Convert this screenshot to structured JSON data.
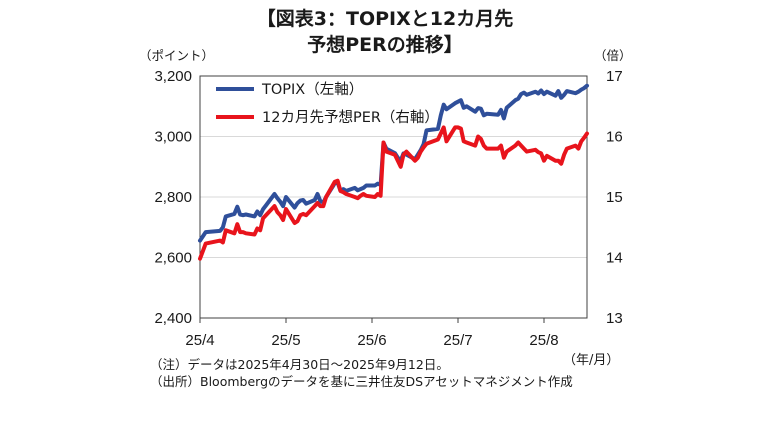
{
  "title": {
    "line1": "【図表3：TOPIXと12カ月先",
    "line2": "予想PERの推移】"
  },
  "left_axis_unit": "（ポイント）",
  "right_axis_unit": "（倍）",
  "x_axis_unit": "（年/月）",
  "notes": {
    "note": "（注）データは2025年4月30日～2025年9月12日。",
    "source": "（出所）Bloombergのデータを基に三井住友DSアセットマネジメント作成"
  },
  "colors": {
    "topix": "#2f4f9a",
    "per": "#e8141c",
    "frame": "#404040"
  },
  "chart_data": {
    "type": "line",
    "x_ticks": [
      "25/4",
      "25/5",
      "25/6",
      "25/7",
      "25/8"
    ],
    "x_range": [
      "2025-04-30",
      "2025-09-12"
    ],
    "y_left": {
      "ticks": [
        "2,400",
        "2,600",
        "2,800",
        "3,000",
        "3,200"
      ],
      "lim": [
        2400,
        3200
      ]
    },
    "y_right": {
      "ticks": [
        "13",
        "14",
        "15",
        "16",
        "17"
      ],
      "lim": [
        13,
        17
      ]
    },
    "legend_position": "top-left",
    "series": [
      {
        "name": "TOPIX（左軸）",
        "axis": "left",
        "color": "#2f4f9a",
        "points": [
          [
            "2025-04-30",
            2656
          ],
          [
            "2025-05-02",
            2684
          ],
          [
            "2025-05-07",
            2688
          ],
          [
            "2025-05-08",
            2700
          ],
          [
            "2025-05-09",
            2736
          ],
          [
            "2025-05-12",
            2744
          ],
          [
            "2025-05-13",
            2768
          ],
          [
            "2025-05-14",
            2742
          ],
          [
            "2025-05-15",
            2740
          ],
          [
            "2025-05-16",
            2742
          ],
          [
            "2025-05-19",
            2736
          ],
          [
            "2025-05-20",
            2752
          ],
          [
            "2025-05-21",
            2740
          ],
          [
            "2025-05-22",
            2760
          ],
          [
            "2025-05-23",
            2772
          ],
          [
            "2025-05-26",
            2810
          ],
          [
            "2025-05-27",
            2796
          ],
          [
            "2025-05-28",
            2784
          ],
          [
            "2025-05-29",
            2770
          ],
          [
            "2025-05-30",
            2800
          ],
          [
            "2025-06-02",
            2765
          ],
          [
            "2025-06-03",
            2780
          ],
          [
            "2025-06-04",
            2788
          ],
          [
            "2025-06-05",
            2790
          ],
          [
            "2025-06-06",
            2778
          ],
          [
            "2025-06-09",
            2790
          ],
          [
            "2025-06-10",
            2810
          ],
          [
            "2025-06-11",
            2786
          ],
          [
            "2025-06-12",
            2782
          ],
          [
            "2025-06-13",
            2800
          ],
          [
            "2025-06-16",
            2845
          ],
          [
            "2025-06-17",
            2848
          ],
          [
            "2025-06-18",
            2820
          ],
          [
            "2025-06-19",
            2826
          ],
          [
            "2025-06-20",
            2820
          ],
          [
            "2025-06-23",
            2830
          ],
          [
            "2025-06-24",
            2822
          ],
          [
            "2025-06-25",
            2826
          ],
          [
            "2025-06-26",
            2830
          ],
          [
            "2025-06-27",
            2838
          ],
          [
            "2025-06-30",
            2838
          ],
          [
            "2025-07-01",
            2844
          ],
          [
            "2025-07-02",
            2840
          ],
          [
            "2025-07-03",
            2980
          ],
          [
            "2025-07-04",
            2960
          ],
          [
            "2025-07-07",
            2945
          ],
          [
            "2025-07-08",
            2930
          ],
          [
            "2025-07-09",
            2920
          ],
          [
            "2025-07-10",
            2944
          ],
          [
            "2025-07-11",
            2940
          ],
          [
            "2025-07-14",
            2925
          ],
          [
            "2025-07-15",
            2940
          ],
          [
            "2025-07-16",
            2955
          ],
          [
            "2025-07-17",
            2975
          ],
          [
            "2025-07-18",
            3020
          ],
          [
            "2025-07-22",
            3025
          ],
          [
            "2025-07-23",
            3070
          ],
          [
            "2025-07-24",
            3105
          ],
          [
            "2025-07-25",
            3090
          ],
          [
            "2025-07-28",
            3110
          ],
          [
            "2025-07-29",
            3115
          ],
          [
            "2025-07-30",
            3120
          ],
          [
            "2025-07-31",
            3095
          ],
          [
            "2025-08-01",
            3100
          ],
          [
            "2025-08-04",
            3082
          ],
          [
            "2025-08-05",
            3094
          ],
          [
            "2025-08-06",
            3092
          ],
          [
            "2025-08-07",
            3070
          ],
          [
            "2025-08-08",
            3075
          ],
          [
            "2025-08-12",
            3072
          ],
          [
            "2025-08-13",
            3088
          ],
          [
            "2025-08-14",
            3060
          ],
          [
            "2025-08-15",
            3095
          ],
          [
            "2025-08-18",
            3120
          ],
          [
            "2025-08-19",
            3125
          ],
          [
            "2025-08-20",
            3140
          ],
          [
            "2025-08-21",
            3145
          ],
          [
            "2025-08-22",
            3138
          ],
          [
            "2025-08-25",
            3148
          ],
          [
            "2025-08-26",
            3142
          ],
          [
            "2025-08-27",
            3152
          ],
          [
            "2025-08-28",
            3140
          ],
          [
            "2025-08-29",
            3148
          ],
          [
            "2025-09-01",
            3135
          ],
          [
            "2025-09-02",
            3150
          ],
          [
            "2025-09-03",
            3128
          ],
          [
            "2025-09-04",
            3138
          ],
          [
            "2025-09-05",
            3150
          ],
          [
            "2025-09-08",
            3143
          ],
          [
            "2025-09-09",
            3148
          ],
          [
            "2025-09-10",
            3155
          ],
          [
            "2025-09-11",
            3160
          ],
          [
            "2025-09-12",
            3168
          ]
        ]
      },
      {
        "name": "12カ月先予想PER（右軸）",
        "axis": "right",
        "color": "#e8141c",
        "points": [
          [
            "2025-04-30",
            13.98
          ],
          [
            "2025-05-02",
            14.23
          ],
          [
            "2025-05-07",
            14.28
          ],
          [
            "2025-05-08",
            14.25
          ],
          [
            "2025-05-09",
            14.45
          ],
          [
            "2025-05-12",
            14.4
          ],
          [
            "2025-05-13",
            14.55
          ],
          [
            "2025-05-14",
            14.42
          ],
          [
            "2025-05-15",
            14.42
          ],
          [
            "2025-05-16",
            14.4
          ],
          [
            "2025-05-19",
            14.38
          ],
          [
            "2025-05-20",
            14.48
          ],
          [
            "2025-05-21",
            14.45
          ],
          [
            "2025-05-22",
            14.65
          ],
          [
            "2025-05-23",
            14.7
          ],
          [
            "2025-05-26",
            14.85
          ],
          [
            "2025-05-27",
            14.75
          ],
          [
            "2025-05-28",
            14.7
          ],
          [
            "2025-05-29",
            14.62
          ],
          [
            "2025-05-30",
            14.8
          ],
          [
            "2025-06-02",
            14.57
          ],
          [
            "2025-06-03",
            14.6
          ],
          [
            "2025-06-04",
            14.7
          ],
          [
            "2025-06-05",
            14.72
          ],
          [
            "2025-06-06",
            14.7
          ],
          [
            "2025-06-09",
            14.85
          ],
          [
            "2025-06-10",
            14.9
          ],
          [
            "2025-06-11",
            14.85
          ],
          [
            "2025-06-12",
            14.85
          ],
          [
            "2025-06-13",
            15.0
          ],
          [
            "2025-06-16",
            15.25
          ],
          [
            "2025-06-17",
            15.27
          ],
          [
            "2025-06-18",
            15.1
          ],
          [
            "2025-06-19",
            15.08
          ],
          [
            "2025-06-20",
            15.05
          ],
          [
            "2025-06-23",
            15.0
          ],
          [
            "2025-06-24",
            14.98
          ],
          [
            "2025-06-25",
            15.02
          ],
          [
            "2025-06-26",
            15.05
          ],
          [
            "2025-06-27",
            15.02
          ],
          [
            "2025-06-30",
            15.0
          ],
          [
            "2025-07-01",
            15.05
          ],
          [
            "2025-07-02",
            15.02
          ],
          [
            "2025-07-03",
            15.9
          ],
          [
            "2025-07-04",
            15.75
          ],
          [
            "2025-07-07",
            15.7
          ],
          [
            "2025-07-08",
            15.6
          ],
          [
            "2025-07-09",
            15.5
          ],
          [
            "2025-07-10",
            15.7
          ],
          [
            "2025-07-11",
            15.75
          ],
          [
            "2025-07-14",
            15.6
          ],
          [
            "2025-07-15",
            15.65
          ],
          [
            "2025-07-16",
            15.75
          ],
          [
            "2025-07-17",
            15.82
          ],
          [
            "2025-07-18",
            15.88
          ],
          [
            "2025-07-22",
            15.95
          ],
          [
            "2025-07-23",
            16.05
          ],
          [
            "2025-07-24",
            16.15
          ],
          [
            "2025-07-25",
            15.92
          ],
          [
            "2025-07-28",
            16.15
          ],
          [
            "2025-07-29",
            16.15
          ],
          [
            "2025-07-30",
            16.13
          ],
          [
            "2025-07-31",
            15.92
          ],
          [
            "2025-08-01",
            15.9
          ],
          [
            "2025-08-04",
            15.85
          ],
          [
            "2025-08-05",
            16.0
          ],
          [
            "2025-08-06",
            15.96
          ],
          [
            "2025-08-07",
            15.85
          ],
          [
            "2025-08-08",
            15.8
          ],
          [
            "2025-08-12",
            15.8
          ],
          [
            "2025-08-13",
            15.85
          ],
          [
            "2025-08-14",
            15.65
          ],
          [
            "2025-08-15",
            15.75
          ],
          [
            "2025-08-18",
            15.85
          ],
          [
            "2025-08-19",
            15.9
          ],
          [
            "2025-08-20",
            15.85
          ],
          [
            "2025-08-21",
            15.8
          ],
          [
            "2025-08-22",
            15.75
          ],
          [
            "2025-08-25",
            15.78
          ],
          [
            "2025-08-26",
            15.74
          ],
          [
            "2025-08-27",
            15.72
          ],
          [
            "2025-08-28",
            15.6
          ],
          [
            "2025-08-29",
            15.68
          ],
          [
            "2025-09-01",
            15.6
          ],
          [
            "2025-09-02",
            15.6
          ],
          [
            "2025-09-03",
            15.55
          ],
          [
            "2025-09-04",
            15.7
          ],
          [
            "2025-09-05",
            15.8
          ],
          [
            "2025-09-08",
            15.85
          ],
          [
            "2025-09-09",
            15.8
          ],
          [
            "2025-09-10",
            15.92
          ],
          [
            "2025-09-11",
            15.98
          ],
          [
            "2025-09-12",
            16.05
          ]
        ]
      }
    ]
  }
}
